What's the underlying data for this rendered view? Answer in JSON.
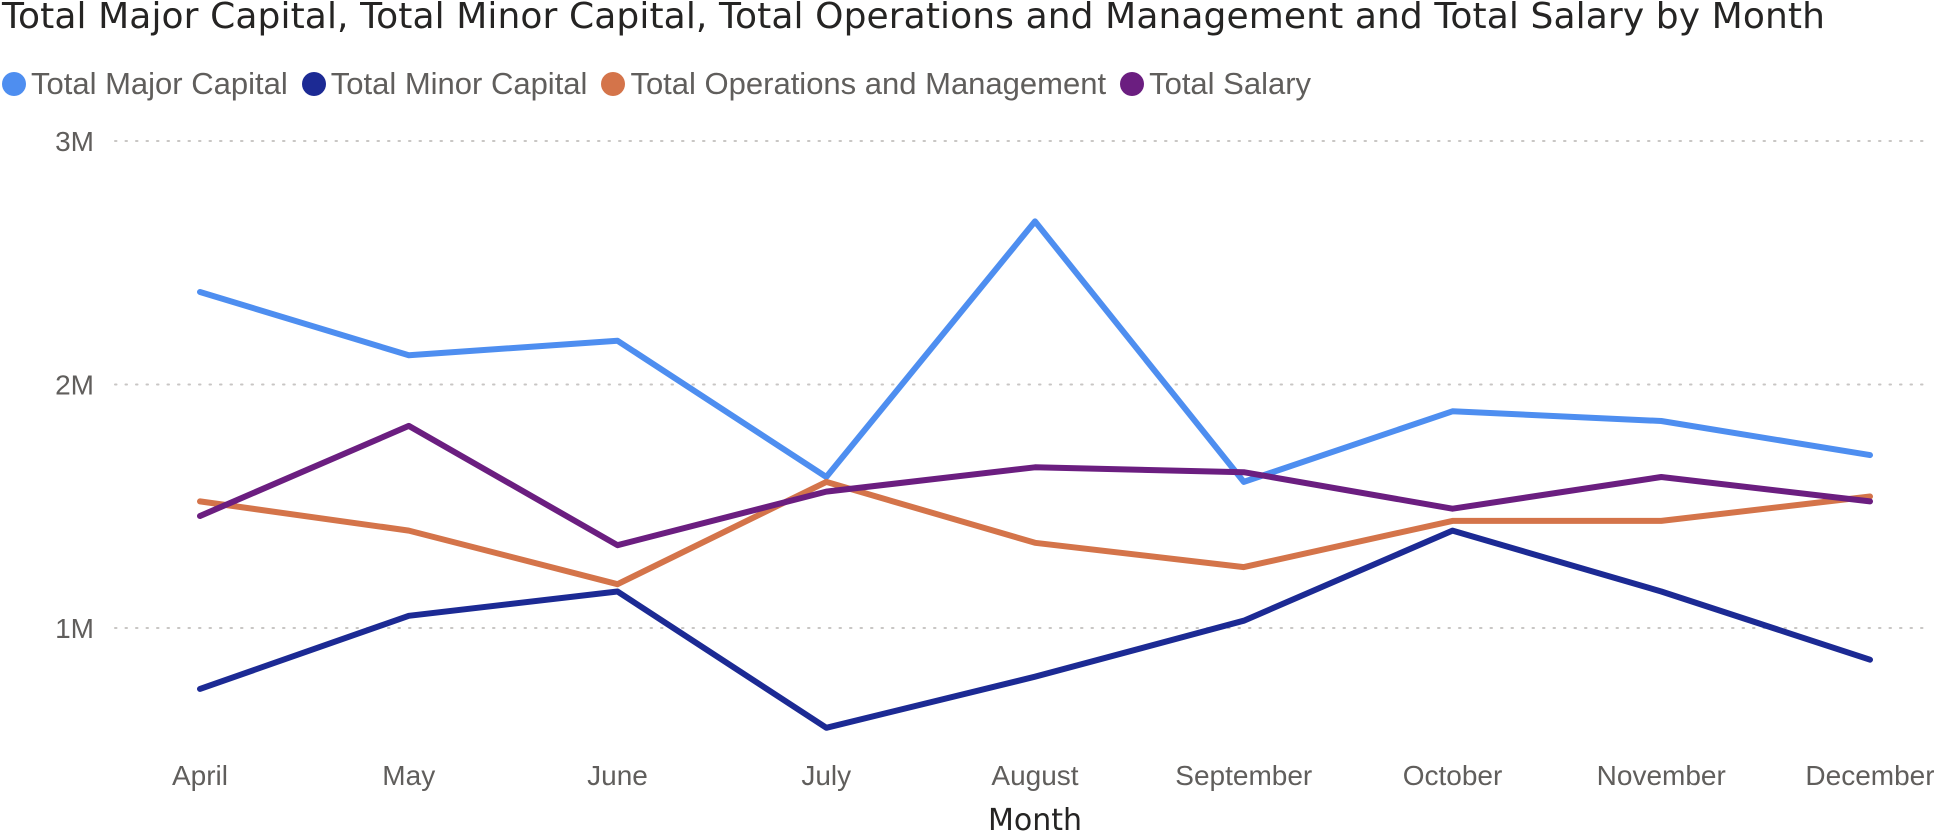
{
  "chart_data": {
    "type": "line",
    "title": "Total Major Capital, Total Minor Capital, Total Operations and Management and Total Salary by Month",
    "xlabel": "Month",
    "ylabel": "",
    "categories": [
      "April",
      "May",
      "June",
      "July",
      "August",
      "September",
      "October",
      "November",
      "December"
    ],
    "y_ticks": [
      {
        "value": 1000000,
        "label": "1M"
      },
      {
        "value": 2000000,
        "label": "2M"
      },
      {
        "value": 3000000,
        "label": "3M"
      }
    ],
    "ylim": [
      500000,
      3000000
    ],
    "grid": true,
    "legend_position": "top-left",
    "series": [
      {
        "name": "Total Major Capital",
        "color": "#4e8ef0",
        "values": [
          2380000,
          2120000,
          2180000,
          1620000,
          2670000,
          1600000,
          1890000,
          1850000,
          1710000
        ]
      },
      {
        "name": "Total Minor Capital",
        "color": "#1c2a94",
        "values": [
          750000,
          1050000,
          1150000,
          590000,
          800000,
          1030000,
          1400000,
          1150000,
          870000
        ]
      },
      {
        "name": "Total Operations and Management",
        "color": "#d4744a",
        "values": [
          1520000,
          1400000,
          1180000,
          1600000,
          1350000,
          1250000,
          1440000,
          1440000,
          1540000
        ]
      },
      {
        "name": "Total Salary",
        "color": "#6b1e80",
        "values": [
          1460000,
          1830000,
          1340000,
          1560000,
          1660000,
          1640000,
          1490000,
          1620000,
          1520000
        ]
      }
    ]
  }
}
